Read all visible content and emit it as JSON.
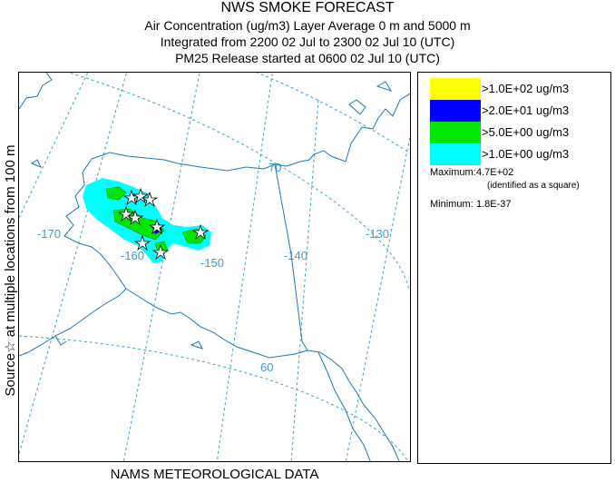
{
  "titles": {
    "line1": "NWS SMOKE FORECAST",
    "line2": "Air Concentration (ug/m3) Layer Average    0 m and  5000 m",
    "line3": "Integrated from 2200 02 Jul to 2300 02 Jul 10 (UTC)",
    "line4": "PM25 Release started at 0600 02 Jul 10 (UTC)"
  },
  "side_label": "Source☆   at multiple locations   from   100 m",
  "bottom_label": "NAMS METEOROLOGICAL DATA",
  "grid_labels": {
    "lat70": "70",
    "lat60": "60",
    "lon170": "-170",
    "lon160": "-160",
    "lon150": "-150",
    "lon140": "-140",
    "lon130": "-130"
  },
  "legend": [
    {
      "label": ">1.0E+02 ug/m3",
      "color": "#ffff00"
    },
    {
      "label": ">2.0E+01 ug/m3",
      "color": "#0000ff"
    },
    {
      "label": ">5.0E+00 ug/m3",
      "color": "#00e600"
    },
    {
      "label": ">1.0E+00 ug/m3",
      "color": "#00ffff"
    }
  ],
  "stats": {
    "maximum_label": "Maximum:",
    "maximum_value": "4.7E+02",
    "maximum_note": "(identified as a square)",
    "minimum_label": "Minimum:",
    "minimum_value": "1.8E-37"
  },
  "colors": {
    "coast": "#1e78b4",
    "grid": "#3a9fd0",
    "source_marker": "#000000"
  }
}
